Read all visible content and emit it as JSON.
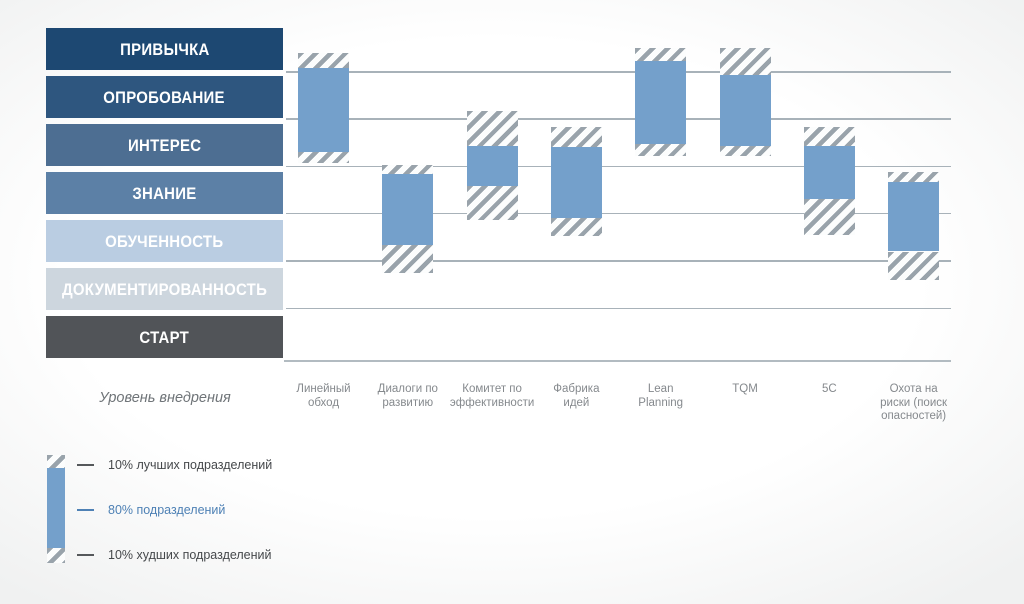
{
  "axis_title": "Уровень внедрения",
  "colors": {
    "bar_fill": "#74a0cb",
    "hatch_stripe": "#99a3ab",
    "gridline": "#a8b2b9",
    "column_label_text": "#85898d",
    "axis_title_text": "#6f7478",
    "legend_text_gray": "#45484b",
    "legend_text_blue": "#4e81b5"
  },
  "levels_top_to_bottom": [
    {
      "label": "ПРИВЫЧКА",
      "color": "#1d4872",
      "text_color": "#ffffff"
    },
    {
      "label": "ОПРОБОВАНИЕ",
      "color": "#2e567f",
      "text_color": "#ffffff"
    },
    {
      "label": "ИНТЕРЕС",
      "color": "#4d6e92",
      "text_color": "#ffffff"
    },
    {
      "label": "ЗНАНИЕ",
      "color": "#5c80a6",
      "text_color": "#ffffff"
    },
    {
      "label": "ОБУЧЕННОСТЬ",
      "color": "#bacde2",
      "text_color": "#ffffff"
    },
    {
      "label": "ДОКУМЕНТИРОВАННОСТЬ",
      "color": "#cdd6de",
      "text_color": "#ffffff"
    },
    {
      "label": "СТАРТ",
      "color": "#515458",
      "text_color": "#ffffff"
    }
  ],
  "legend": {
    "items": [
      {
        "label": "10% лучших подразделений",
        "text_color": "#45484b",
        "marker_color": "#55585b",
        "swatch": "hatch"
      },
      {
        "label": "80% подразделений",
        "text_color": "#4e81b5",
        "marker_color": "#4e81b5",
        "swatch": "solid"
      },
      {
        "label": "10% худших подразделений",
        "text_color": "#45484b",
        "marker_color": "#55585b",
        "swatch": "hatch"
      }
    ]
  },
  "chart_data": {
    "type": "floating-bar-range-with-hatched-whiskers",
    "title": "",
    "xlabel": "",
    "ylabel": "Уровень внедрения",
    "grid": "horizontal lines at level boundaries",
    "y_axis_levels_bottom_to_top": [
      "СТАРТ",
      "ДОКУМЕНТИРОВАННОСТЬ",
      "ОБУЧЕННОСТЬ",
      "ЗНАНИЕ",
      "ИНТЕРЕС",
      "ОПРОБОВАНИЕ",
      "ПРИВЫЧКА"
    ],
    "value_units": "level scale 0–7, where 0 = baseline below СТАРТ and each integer is a level boundary",
    "categories": [
      "Линейный обход",
      "Диалоги по развитию",
      "Комитет по эффективности",
      "Фабрика идей",
      "Lean Planning",
      "TQM",
      "5C",
      "Охота на риски (поиск опасностей)"
    ],
    "tools": [
      {
        "name": "Линейный обход",
        "label_lines": [
          "Линейный",
          "обход"
        ],
        "whisker_top": 6.4,
        "box_top": 6.09,
        "box_bottom": 4.31,
        "whisker_bottom": 4.07
      },
      {
        "name": "Диалоги по развитию",
        "label_lines": [
          "Диалоги по",
          "развитию"
        ],
        "whisker_top": 4.03,
        "box_top": 3.85,
        "box_bottom": 2.34,
        "whisker_bottom": 1.74
      },
      {
        "name": "Комитет по эффективности",
        "label_lines": [
          "Комитет по",
          "эффективности"
        ],
        "whisker_top": 5.17,
        "box_top": 4.43,
        "box_bottom": 3.59,
        "whisker_bottom": 2.86
      },
      {
        "name": "Фабрика идей",
        "label_lines": [
          "Фабрика",
          "идей"
        ],
        "whisker_top": 4.84,
        "box_top": 4.42,
        "box_bottom": 2.9,
        "whisker_bottom": 2.53
      },
      {
        "name": "Lean Planning",
        "label_lines": [
          "Lean",
          "Planning"
        ],
        "whisker_top": 6.52,
        "box_top": 6.23,
        "box_bottom": 4.47,
        "whisker_bottom": 4.23
      },
      {
        "name": "TQM",
        "label_lines": [
          "TQM"
        ],
        "whisker_top": 6.52,
        "box_top": 5.94,
        "box_bottom": 4.43,
        "whisker_bottom": 4.22
      },
      {
        "name": "5C",
        "label_lines": [
          "5C"
        ],
        "whisker_top": 4.84,
        "box_top": 4.43,
        "box_bottom": 3.31,
        "whisker_bottom": 2.55
      },
      {
        "name": "Охота на риски (поиск опасностей)",
        "label_lines": [
          "Охота на",
          "риски (поиск",
          "опасностей)"
        ],
        "whisker_top": 3.89,
        "box_top": 3.68,
        "box_bottom": 2.2,
        "whisker_bottom": 1.6
      }
    ],
    "legend_position": "bottom-left",
    "series_meaning": {
      "hatched_top": "10% лучших подразделений",
      "solid_blue": "80% подразделений",
      "hatched_bottom": "10% худших подразделений"
    }
  }
}
